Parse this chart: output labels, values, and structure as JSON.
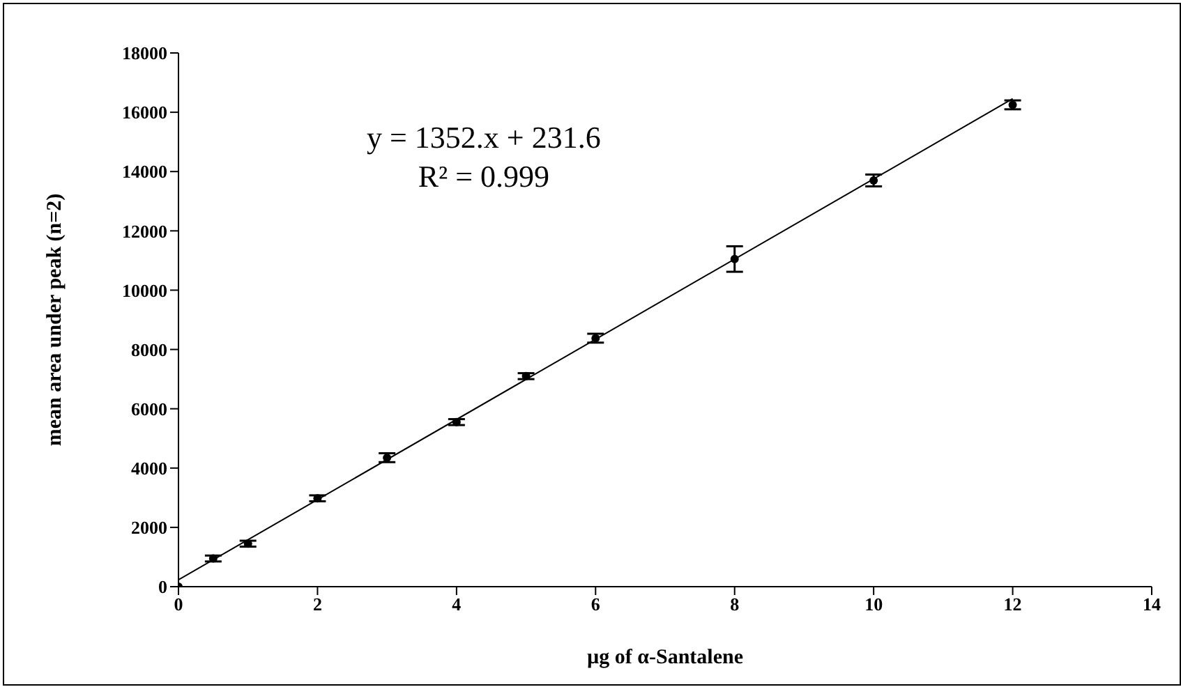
{
  "chart_data": {
    "type": "scatter",
    "xlabel": "µg of α-Santalene",
    "ylabel": "mean area under peak (n=2)",
    "annotations": [
      "y = 1352.x + 231.6",
      "R² = 0.999"
    ],
    "x": [
      0,
      0.5,
      1,
      2,
      3,
      4,
      5,
      6,
      8,
      10,
      12
    ],
    "series": [
      {
        "color": "#000000",
        "values": [
          0,
          950,
          1450,
          2980,
          4350,
          5550,
          7100,
          8380,
          11050,
          13700,
          16250
        ],
        "errors": [
          null,
          100,
          100,
          100,
          150,
          100,
          100,
          150,
          430,
          200,
          150
        ],
        "marker": "circle"
      },
      {
        "type": "line",
        "color": "#000000",
        "x": [
          0,
          12
        ],
        "values": [
          231.6,
          16455.6
        ],
        "marker": "none"
      }
    ],
    "xlim": [
      0,
      14
    ],
    "xticks": [
      0,
      2,
      4,
      6,
      8,
      10,
      12,
      14
    ],
    "ylim": [
      0,
      18000
    ],
    "yticks": [
      0,
      2000,
      4000,
      6000,
      8000,
      10000,
      12000,
      14000,
      16000,
      18000
    ],
    "grid": false,
    "legend": false
  }
}
